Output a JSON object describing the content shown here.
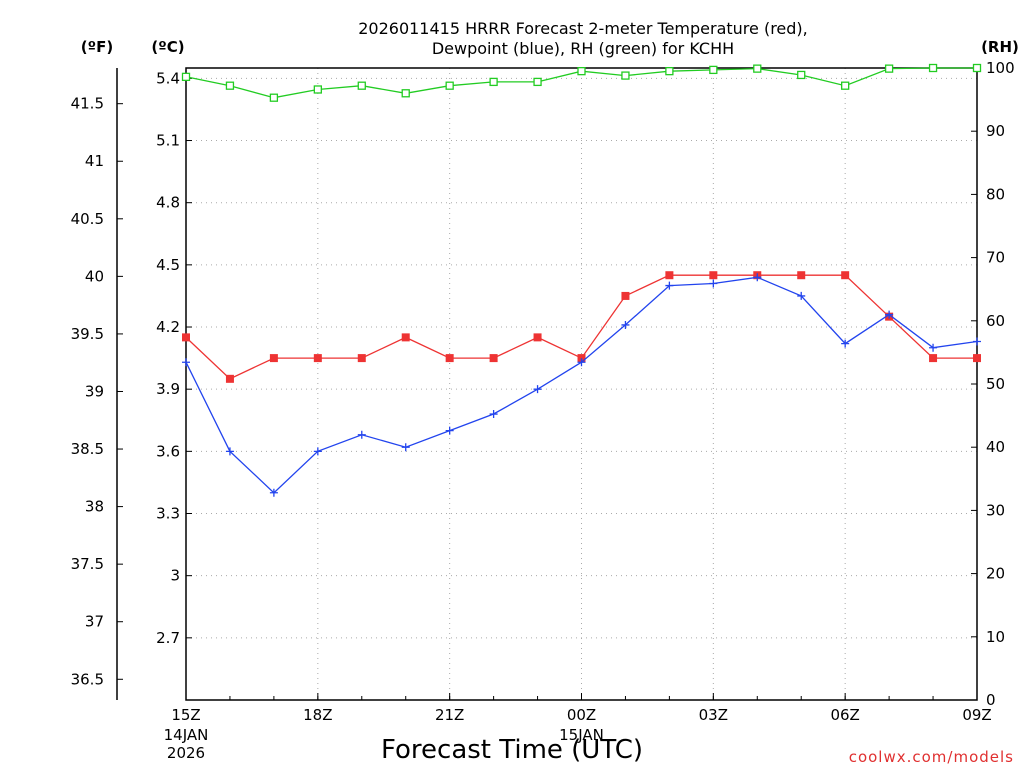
{
  "chart_data": {
    "type": "line",
    "title": [
      "2026011415 HRRR Forecast 2-meter Temperature (red),",
      "Dewpoint (blue), RH (green) for KCHH"
    ],
    "xlabel": "Forecast Time (UTC)",
    "credit": "coolwx.com/models",
    "units": {
      "fahrenheit": "(ºF)",
      "celsius": "(ºC)",
      "rh": "(RH)"
    },
    "x": [
      0,
      1,
      2,
      3,
      4,
      5,
      6,
      7,
      8,
      9,
      10,
      11,
      12,
      13,
      14,
      15,
      16,
      17,
      18
    ],
    "x_ticks": [
      {
        "x": 0,
        "label": "15Z",
        "sub": [
          "14JAN",
          "2026"
        ]
      },
      {
        "x": 3,
        "label": "18Z",
        "sub": []
      },
      {
        "x": 6,
        "label": "21Z",
        "sub": []
      },
      {
        "x": 9,
        "label": "00Z",
        "sub": [
          "15JAN"
        ]
      },
      {
        "x": 12,
        "label": "03Z",
        "sub": []
      },
      {
        "x": 15,
        "label": "06Z",
        "sub": []
      },
      {
        "x": 18,
        "label": "09Z",
        "sub": []
      }
    ],
    "celsius_axis": {
      "ylim": [
        2.4,
        5.45
      ],
      "ticks": [
        "2.7",
        "3",
        "3.3",
        "3.6",
        "3.9",
        "4.2",
        "4.5",
        "4.8",
        "5.1",
        "5.4"
      ]
    },
    "fahrenheit_axis": {
      "ylim": [
        36.32,
        41.81
      ],
      "ticks": [
        "36.5",
        "37",
        "37.5",
        "38",
        "38.5",
        "39",
        "39.5",
        "40",
        "40.5",
        "41",
        "41.5"
      ]
    },
    "rh_axis": {
      "ylim": [
        0,
        100
      ],
      "ticks": [
        "0",
        "10",
        "20",
        "30",
        "40",
        "50",
        "60",
        "70",
        "80",
        "90",
        "100"
      ]
    },
    "series": [
      {
        "name": "Temperature",
        "axis": "celsius",
        "color": "#ee3333",
        "marker": "filled-square",
        "values": [
          4.15,
          3.95,
          4.05,
          4.05,
          4.05,
          4.15,
          4.05,
          4.05,
          4.15,
          4.05,
          4.35,
          4.45,
          4.45,
          4.45,
          4.45,
          4.45,
          4.25,
          4.05,
          4.05
        ]
      },
      {
        "name": "Dewpoint",
        "axis": "celsius",
        "color": "#2244ee",
        "marker": "plus",
        "values": [
          4.03,
          3.6,
          3.4,
          3.6,
          3.68,
          3.62,
          3.7,
          3.78,
          3.9,
          4.03,
          4.21,
          4.4,
          4.41,
          4.44,
          4.35,
          4.12,
          4.26,
          4.1,
          4.13
        ]
      },
      {
        "name": "RH",
        "axis": "rh",
        "color": "#22cc22",
        "marker": "open-square",
        "values": [
          98.6,
          97.2,
          95.3,
          96.6,
          97.2,
          96.0,
          97.2,
          97.8,
          97.8,
          99.5,
          98.8,
          99.5,
          99.7,
          99.9,
          98.9,
          97.2,
          99.9,
          100.0,
          100.0
        ]
      }
    ]
  }
}
